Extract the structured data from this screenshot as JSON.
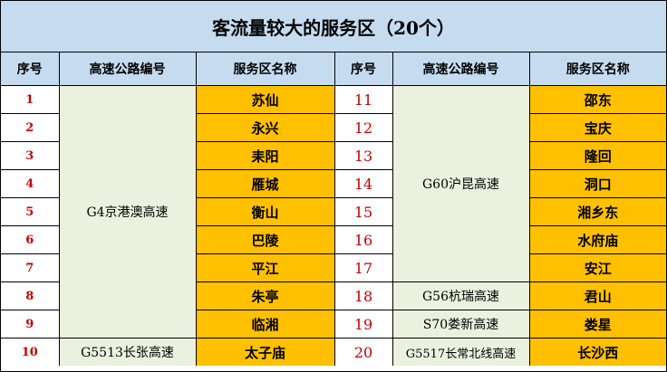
{
  "title": "客流量较大的服务区（20个）",
  "headers": {
    "seq": "序号",
    "highway": "高速公路编号",
    "name": "服务区名称"
  },
  "left": {
    "seq": [
      "1",
      "2",
      "3",
      "4",
      "5",
      "6",
      "7",
      "8",
      "9",
      "10"
    ],
    "names": [
      "苏仙",
      "永兴",
      "耒阳",
      "雁城",
      "衡山",
      "巴陵",
      "平江",
      "朱亭",
      "临湘",
      "太子庙"
    ],
    "highway_g4": "G4京港澳高速",
    "highway_g5513": "G5513长张高速"
  },
  "right": {
    "seq": [
      "11",
      "12",
      "13",
      "14",
      "15",
      "16",
      "17",
      "18",
      "19",
      "20"
    ],
    "names": [
      "邵东",
      "宝庆",
      "隆回",
      "洞口",
      "湘乡东",
      "水府庙",
      "安江",
      "君山",
      "娄星",
      "长沙西"
    ],
    "highway_g60": "G60沪昆高速",
    "highway_g56": "G56杭瑞高速",
    "highway_s70": "S70娄新高速",
    "highway_g5517": "G5517长常北线高速"
  }
}
